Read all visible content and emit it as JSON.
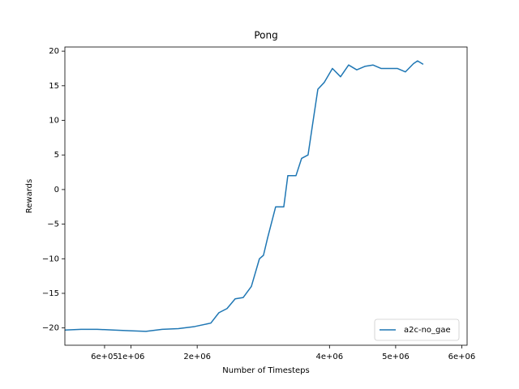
{
  "chart_data": {
    "type": "line",
    "title": "Pong",
    "xlabel": "Number of Timesteps",
    "ylabel": "Rewards",
    "x": [
      0,
      245000,
      490000,
      735000,
      980000,
      1225000,
      1471000,
      1716000,
      1961000,
      2206000,
      2328000,
      2451000,
      2574000,
      2696000,
      2819000,
      2941000,
      3002000,
      3064000,
      3186000,
      3309000,
      3370000,
      3493000,
      3578000,
      3676000,
      3738000,
      3824000,
      3922000,
      4044000,
      4167000,
      4289000,
      4412000,
      4534000,
      4657000,
      4779000,
      4902000,
      5025000,
      5147000,
      5270000,
      5331000,
      5417000
    ],
    "series": [
      {
        "name": "a2c-no_gae",
        "color": "#1f77b4",
        "values": [
          -20.3,
          -20.2,
          -20.2,
          -20.3,
          -20.4,
          -20.5,
          -20.2,
          -20.1,
          -19.8,
          -19.3,
          -17.8,
          -17.2,
          -15.8,
          -15.6,
          -14,
          -10,
          -9.5,
          -7,
          -2.5,
          -2.5,
          2,
          2,
          4.5,
          5,
          9,
          14.5,
          15.5,
          17.5,
          16.3,
          18,
          17.3,
          17.8,
          18,
          17.5,
          17.5,
          17.5,
          17,
          18.2,
          18.6,
          18.1
        ]
      }
    ],
    "xlim": [
      0,
      6080000
    ],
    "xticks": [
      {
        "value": 600000,
        "label": "6e+05"
      },
      {
        "value": 1000000,
        "label": "1e+06"
      },
      {
        "value": 2000000,
        "label": "2e+06"
      },
      {
        "value": 4000000,
        "label": "4e+06"
      },
      {
        "value": 5000000,
        "label": "5e+06"
      },
      {
        "value": 6000000,
        "label": "6e+06"
      }
    ],
    "ylim": [
      -22.5,
      20.6
    ],
    "yticks": [
      {
        "value": -20,
        "label": "−20"
      },
      {
        "value": -15,
        "label": "−15"
      },
      {
        "value": -10,
        "label": "−10"
      },
      {
        "value": -5,
        "label": "−5"
      },
      0,
      5,
      10,
      15,
      20
    ],
    "legend": "lower right"
  }
}
